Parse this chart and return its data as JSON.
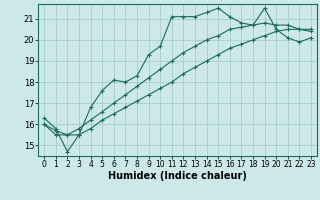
{
  "xlabel": "Humidex (Indice chaleur)",
  "background_color": "#cce8e8",
  "grid_color": "#aacccc",
  "line_color": "#1a6b5a",
  "xlim": [
    -0.5,
    23.5
  ],
  "ylim": [
    14.5,
    21.7
  ],
  "yticks": [
    15,
    16,
    17,
    18,
    19,
    20,
    21
  ],
  "xticks": [
    0,
    1,
    2,
    3,
    4,
    5,
    6,
    7,
    8,
    9,
    10,
    11,
    12,
    13,
    14,
    15,
    16,
    17,
    18,
    19,
    20,
    21,
    22,
    23
  ],
  "series": [
    [
      16.3,
      15.8,
      14.7,
      15.5,
      16.8,
      17.6,
      18.1,
      18.0,
      18.3,
      19.3,
      19.7,
      21.1,
      21.1,
      21.1,
      21.3,
      21.5,
      21.1,
      20.8,
      20.7,
      21.5,
      20.5,
      20.1,
      19.9,
      20.1
    ],
    [
      16.0,
      15.7,
      15.5,
      15.8,
      16.2,
      16.6,
      17.0,
      17.4,
      17.8,
      18.2,
      18.6,
      19.0,
      19.4,
      19.7,
      20.0,
      20.2,
      20.5,
      20.6,
      20.7,
      20.8,
      20.7,
      20.7,
      20.5,
      20.4
    ],
    [
      16.0,
      15.5,
      15.5,
      15.5,
      15.8,
      16.2,
      16.5,
      16.8,
      17.1,
      17.4,
      17.7,
      18.0,
      18.4,
      18.7,
      19.0,
      19.3,
      19.6,
      19.8,
      20.0,
      20.2,
      20.4,
      20.5,
      20.5,
      20.5
    ]
  ]
}
